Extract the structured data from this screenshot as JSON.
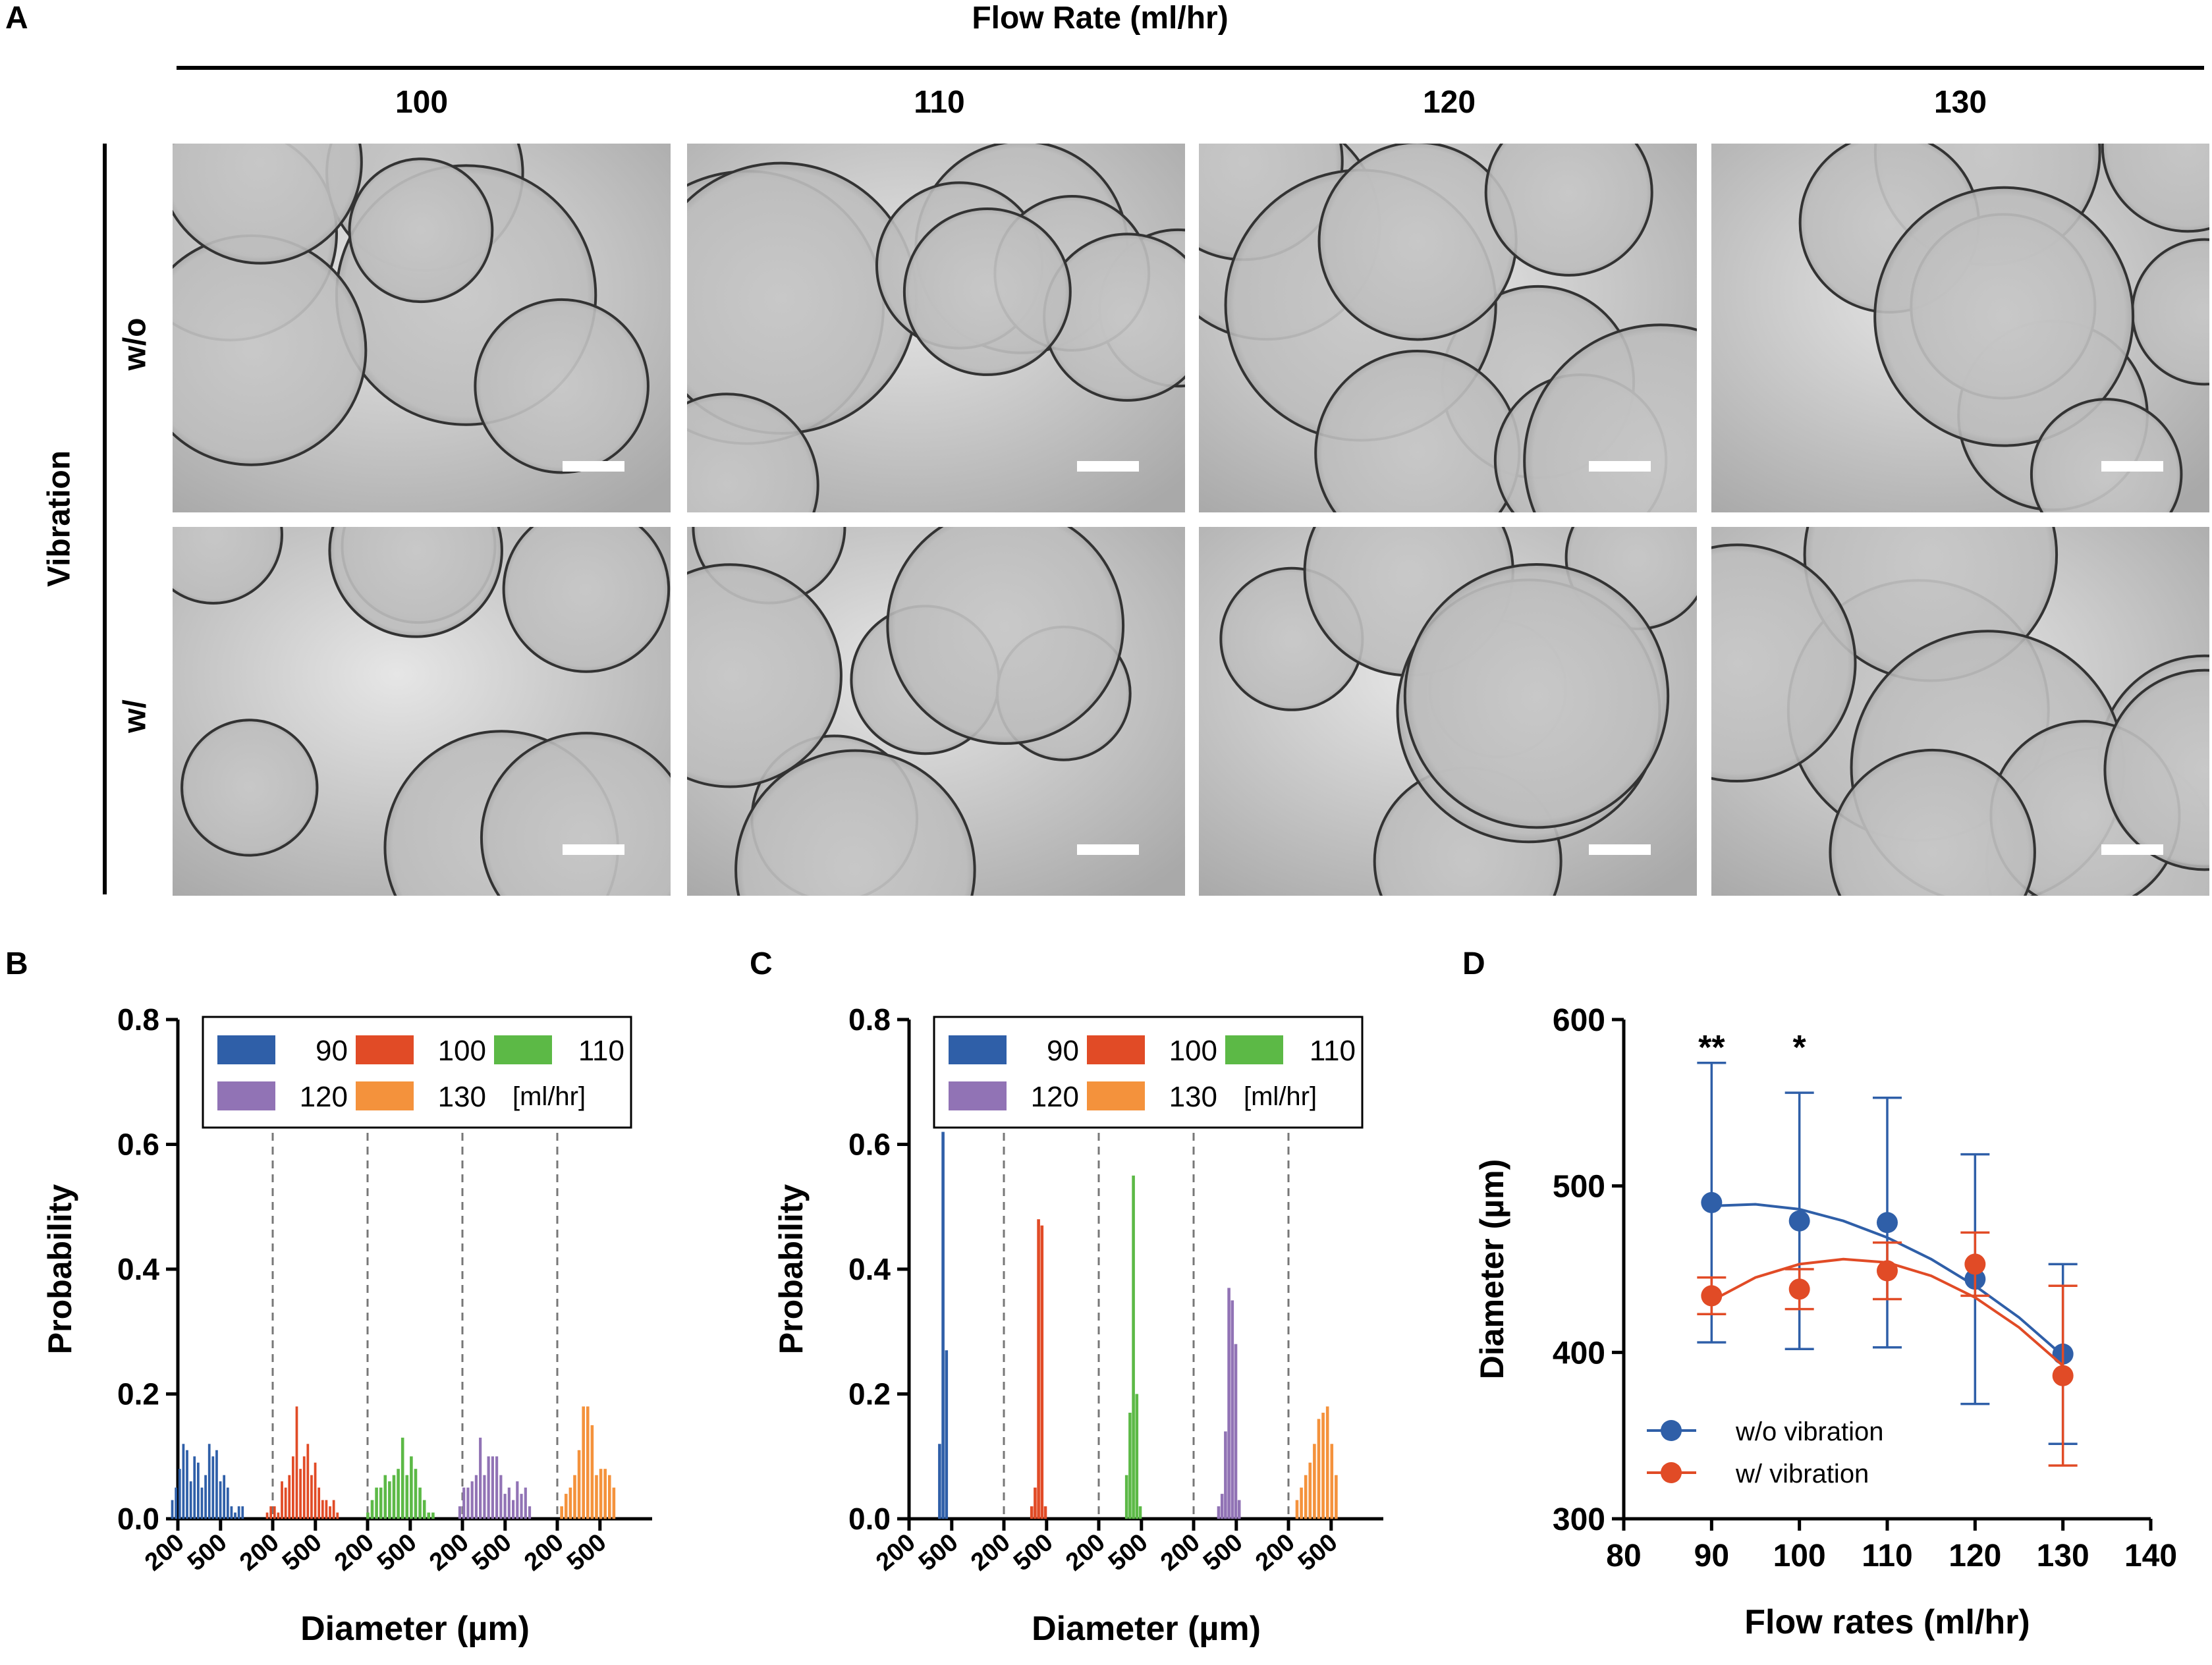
{
  "panels": {
    "a": "A",
    "b": "B",
    "c": "C",
    "d": "D"
  },
  "panel_a": {
    "column_title": "Flow Rate (ml/hr)",
    "columns": [
      "100",
      "110",
      "120",
      "130"
    ],
    "row_group_label": "Vibration",
    "rows": [
      "w/o",
      "w/"
    ]
  },
  "chart_data": [
    {
      "id": "B",
      "type": "bar",
      "ylabel": "Probability",
      "xlabel": "Diameter (µm)",
      "ylim": [
        0,
        0.8
      ],
      "yticks": [
        "0.0",
        "0.2",
        "0.4",
        "0.6",
        "0.8"
      ],
      "group_tick_labels": [
        "200",
        "500"
      ],
      "legend": {
        "entries": [
          "90",
          "100",
          "110",
          "120",
          "130"
        ],
        "unit": "[ml/hr]",
        "placement": "top"
      },
      "groups_separated_by_dashed_lines": true,
      "series": [
        {
          "name": "90",
          "color": "#2f5fa8",
          "values": [
            0.03,
            0.05,
            0.08,
            0.12,
            0.11,
            0.06,
            0.1,
            0.09,
            0.05,
            0.07,
            0.12,
            0.1,
            0.11,
            0.06,
            0.07,
            0.05,
            0.02,
            0.01,
            0.02,
            0.02
          ]
        },
        {
          "name": "100",
          "color": "#e14b26",
          "values": [
            0.01,
            0.02,
            0.02,
            0.01,
            0.06,
            0.05,
            0.07,
            0.1,
            0.18,
            0.08,
            0.1,
            0.12,
            0.07,
            0.09,
            0.05,
            0.03,
            0.03,
            0.02,
            0.03,
            0.01
          ]
        },
        {
          "name": "110",
          "color": "#5cb946",
          "values": [
            0.01,
            0.03,
            0.05,
            0.05,
            0.07,
            0.06,
            0.07,
            0.08,
            0.13,
            0.07,
            0.1,
            0.08,
            0.05,
            0.03,
            0.01,
            0.01
          ]
        },
        {
          "name": "120",
          "color": "#9173b5",
          "values": [
            0.02,
            0.05,
            0.05,
            0.06,
            0.07,
            0.13,
            0.07,
            0.1,
            0.1,
            0.1,
            0.07,
            0.04,
            0.05,
            0.03,
            0.06,
            0.04,
            0.05,
            0.02
          ]
        },
        {
          "name": "130",
          "color": "#f4923c",
          "values": [
            0.02,
            0.04,
            0.05,
            0.07,
            0.11,
            0.18,
            0.18,
            0.15,
            0.07,
            0.08,
            0.08,
            0.07,
            0.05
          ]
        }
      ]
    },
    {
      "id": "C",
      "type": "bar",
      "ylabel": "Probability",
      "xlabel": "Diameter (µm)",
      "ylim": [
        0,
        0.8
      ],
      "yticks": [
        "0.0",
        "0.2",
        "0.4",
        "0.6",
        "0.8"
      ],
      "group_tick_labels": [
        "200",
        "500"
      ],
      "legend": {
        "entries": [
          "90",
          "100",
          "110",
          "120",
          "130"
        ],
        "unit": "[ml/hr]",
        "placement": "top"
      },
      "groups_separated_by_dashed_lines": true,
      "series": [
        {
          "name": "90",
          "color": "#2f5fa8",
          "values": [
            0.12,
            0.62,
            0.27
          ]
        },
        {
          "name": "100",
          "color": "#e14b26",
          "values": [
            0.02,
            0.05,
            0.48,
            0.47,
            0.02
          ]
        },
        {
          "name": "110",
          "color": "#5cb946",
          "values": [
            0.07,
            0.17,
            0.55,
            0.2,
            0.02
          ]
        },
        {
          "name": "120",
          "color": "#9173b5",
          "values": [
            0.02,
            0.04,
            0.14,
            0.37,
            0.35,
            0.28,
            0.03
          ]
        },
        {
          "name": "130",
          "color": "#f4923c",
          "values": [
            0.03,
            0.05,
            0.07,
            0.09,
            0.12,
            0.16,
            0.17,
            0.18,
            0.12,
            0.07
          ]
        }
      ]
    },
    {
      "id": "D",
      "type": "scatter",
      "xlabel": "Flow rates (ml/hr)",
      "ylabel": "Diameter (µm)",
      "xlim": [
        80,
        140
      ],
      "ylim": [
        300,
        600
      ],
      "xticks": [
        "80",
        "90",
        "100",
        "110",
        "120",
        "130",
        "140"
      ],
      "yticks": [
        "300",
        "400",
        "500",
        "600"
      ],
      "legend_placement": "bottom-left",
      "annotations": [
        {
          "x": 90,
          "text": "**"
        },
        {
          "x": 100,
          "text": "*"
        }
      ],
      "series": [
        {
          "name": "w/o vibration",
          "color": "#2f5fa8",
          "x": [
            90,
            100,
            110,
            120,
            130
          ],
          "y": [
            490,
            479,
            478,
            444,
            399
          ],
          "error": [
            84,
            77,
            75,
            75,
            54
          ],
          "fit": [
            [
              90,
              488
            ],
            [
              95,
              489
            ],
            [
              100,
              486
            ],
            [
              105,
              479
            ],
            [
              110,
              469
            ],
            [
              115,
              456
            ],
            [
              120,
              440
            ],
            [
              125,
              421
            ],
            [
              130,
              398
            ]
          ]
        },
        {
          "name": "w/ vibration",
          "color": "#e14b26",
          "x": [
            90,
            100,
            110,
            120,
            130
          ],
          "y": [
            434,
            438,
            449,
            453,
            386
          ],
          "error": [
            11,
            12,
            17,
            19,
            54
          ],
          "fit": [
            [
              90,
              431
            ],
            [
              95,
              445
            ],
            [
              100,
              453
            ],
            [
              105,
              456
            ],
            [
              110,
              454
            ],
            [
              115,
              446
            ],
            [
              120,
              433
            ],
            [
              125,
              415
            ],
            [
              130,
              392
            ]
          ]
        }
      ]
    }
  ]
}
